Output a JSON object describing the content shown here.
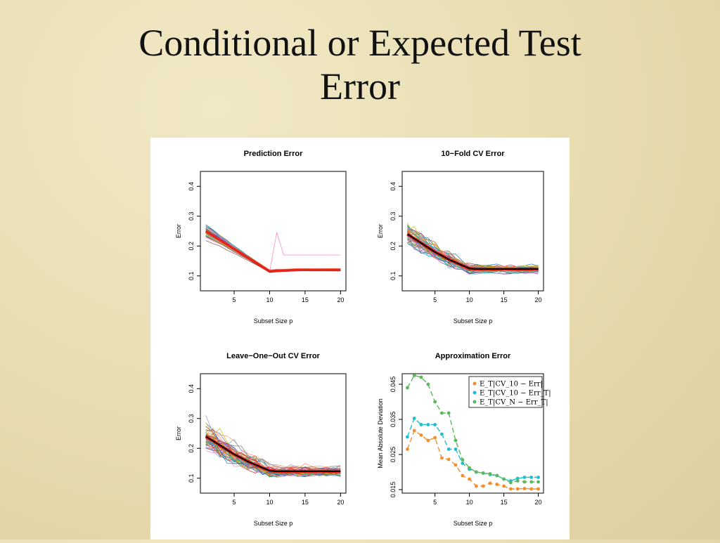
{
  "slide": {
    "title_line1": "Conditional or Expected Test",
    "title_line2": "Error"
  },
  "chart_data": [
    {
      "type": "line",
      "title": "Prediction Error",
      "xlabel": "Subset Size p",
      "ylabel": "Error",
      "xlim": [
        1,
        20
      ],
      "ylim": [
        0.05,
        0.45
      ],
      "xticks": [
        5,
        10,
        15,
        20
      ],
      "yticks": [
        0.1,
        0.2,
        0.3,
        0.4
      ],
      "n_thin_curves": 50,
      "mean_curve": {
        "x": [
          1,
          2,
          3,
          4,
          5,
          6,
          7,
          8,
          9,
          10,
          11,
          12,
          13,
          14,
          15,
          16,
          17,
          18,
          19,
          20
        ],
        "y": [
          0.25,
          0.235,
          0.22,
          0.205,
          0.19,
          0.175,
          0.16,
          0.145,
          0.13,
          0.115,
          0.117,
          0.118,
          0.119,
          0.12,
          0.12,
          0.12,
          0.12,
          0.12,
          0.12,
          0.12
        ]
      },
      "grid": false,
      "legend": "none"
    },
    {
      "type": "line",
      "title": "10−Fold CV Error",
      "xlabel": "Subset Size p",
      "ylabel": "Error",
      "xlim": [
        1,
        20
      ],
      "ylim": [
        0.05,
        0.45
      ],
      "xticks": [
        5,
        10,
        15,
        20
      ],
      "yticks": [
        0.1,
        0.2,
        0.3,
        0.4
      ],
      "n_thin_curves": 50,
      "mean_curve": {
        "x": [
          1,
          2,
          3,
          4,
          5,
          6,
          7,
          8,
          9,
          10,
          11,
          12,
          13,
          14,
          15,
          16,
          17,
          18,
          19,
          20
        ],
        "y": [
          0.24,
          0.225,
          0.21,
          0.195,
          0.18,
          0.168,
          0.155,
          0.145,
          0.135,
          0.125,
          0.123,
          0.123,
          0.123,
          0.123,
          0.123,
          0.123,
          0.123,
          0.123,
          0.123,
          0.123
        ]
      },
      "grid": false,
      "legend": "none"
    },
    {
      "type": "line",
      "title": "Leave−One−Out CV Error",
      "xlabel": "Subset Size p",
      "ylabel": "Error",
      "xlim": [
        1,
        20
      ],
      "ylim": [
        0.05,
        0.45
      ],
      "xticks": [
        5,
        10,
        15,
        20
      ],
      "yticks": [
        0.1,
        0.2,
        0.3,
        0.4
      ],
      "n_thin_curves": 50,
      "mean_curve": {
        "x": [
          1,
          2,
          3,
          4,
          5,
          6,
          7,
          8,
          9,
          10,
          11,
          12,
          13,
          14,
          15,
          16,
          17,
          18,
          19,
          20
        ],
        "y": [
          0.24,
          0.225,
          0.21,
          0.195,
          0.18,
          0.168,
          0.155,
          0.145,
          0.135,
          0.125,
          0.123,
          0.123,
          0.123,
          0.123,
          0.123,
          0.123,
          0.123,
          0.123,
          0.123,
          0.123
        ]
      },
      "grid": false,
      "legend": "none"
    },
    {
      "type": "scatter",
      "title": "Approximation Error",
      "xlabel": "Subset Size p",
      "ylabel": "Mean Absolute Deviation",
      "xlim": [
        1,
        20
      ],
      "ylim": [
        0.014,
        0.048
      ],
      "xticks": [
        5,
        10,
        15,
        20
      ],
      "yticks": [
        0.015,
        0.025,
        0.035,
        0.045
      ],
      "legend": "top-right",
      "series": [
        {
          "name": "E_T|CV_10 − Err|",
          "color": "#f28e2b",
          "x": [
            1,
            2,
            3,
            4,
            5,
            6,
            7,
            8,
            9,
            10,
            11,
            12,
            13,
            14,
            15,
            16,
            17,
            18,
            19,
            20
          ],
          "y": [
            0.0265,
            0.0318,
            0.0305,
            0.029,
            0.0298,
            0.024,
            0.0236,
            0.022,
            0.019,
            0.018,
            0.016,
            0.016,
            0.0168,
            0.0165,
            0.016,
            0.0152,
            0.0152,
            0.0153,
            0.0152,
            0.0152
          ]
        },
        {
          "name": "E_T|CV_10 − Err_T|",
          "color": "#1fbfcf",
          "x": [
            1,
            2,
            3,
            4,
            5,
            6,
            7,
            8,
            9,
            10,
            11,
            12,
            13,
            14,
            15,
            16,
            17,
            18,
            19,
            20
          ],
          "y": [
            0.03,
            0.0353,
            0.0335,
            0.0335,
            0.0335,
            0.0308,
            0.0265,
            0.0265,
            0.0225,
            0.0208,
            0.02,
            0.0197,
            0.0193,
            0.019,
            0.018,
            0.0175,
            0.0182,
            0.0185,
            0.0185,
            0.0185
          ]
        },
        {
          "name": "E_T|CV_N − Err_T|",
          "color": "#5cb85c",
          "x": [
            1,
            2,
            3,
            4,
            5,
            6,
            7,
            8,
            9,
            10,
            11,
            12,
            13,
            14,
            15,
            16,
            17,
            18,
            19,
            20
          ],
          "y": [
            0.044,
            0.0475,
            0.047,
            0.045,
            0.04,
            0.0368,
            0.0368,
            0.029,
            0.0235,
            0.0212,
            0.02,
            0.0197,
            0.0195,
            0.019,
            0.018,
            0.017,
            0.0175,
            0.0172,
            0.0172,
            0.0172
          ]
        }
      ]
    }
  ]
}
